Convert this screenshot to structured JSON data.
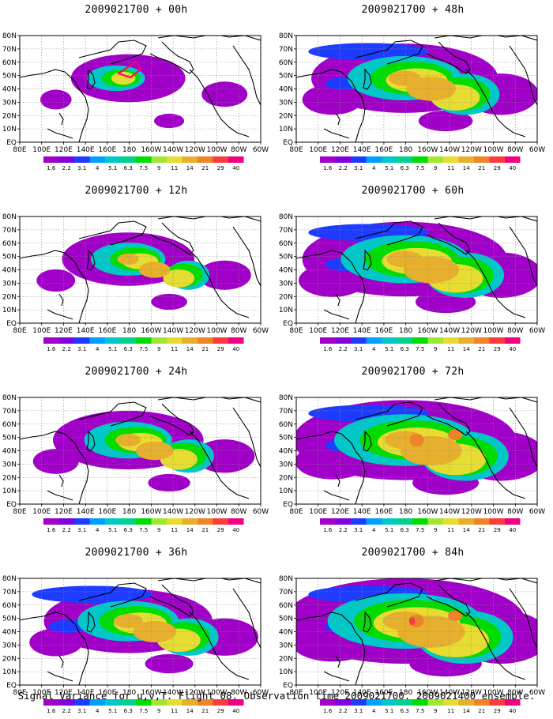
{
  "footer": "Signal Variance for u,v,T. Flight 08. Observation time 2009021700. 2009021400 ensemble.",
  "lon_ticks": [
    "80E",
    "100E",
    "120E",
    "140E",
    "160E",
    "180",
    "160W",
    "140W",
    "120W",
    "100W",
    "80W",
    "60W"
  ],
  "lat_ticks": [
    "80N",
    "70N",
    "60N",
    "50N",
    "40N",
    "30N",
    "20N",
    "10N",
    "EQ"
  ],
  "colorbar": {
    "levels": [
      "1.6",
      "2.2",
      "3.1",
      "4",
      "5.1",
      "6.3",
      "7.5",
      "9",
      "11",
      "14",
      "21",
      "29",
      "40"
    ],
    "colors": [
      "#a000c8",
      "#8200dc",
      "#1e3cff",
      "#00a0ff",
      "#00c8c8",
      "#00d28c",
      "#00dc00",
      "#a0e632",
      "#e6dc32",
      "#e6af2d",
      "#f08228",
      "#fa3c3c",
      "#f00082"
    ]
  },
  "panels": [
    {
      "title": "2009021700 + 00h",
      "intensity": 1
    },
    {
      "title": "2009021700 + 12h",
      "intensity": 2
    },
    {
      "title": "2009021700 + 24h",
      "intensity": 3
    },
    {
      "title": "2009021700 + 36h",
      "intensity": 4
    },
    {
      "title": "2009021700 + 48h",
      "intensity": 5
    },
    {
      "title": "2009021700 + 60h",
      "intensity": 6
    },
    {
      "title": "2009021700 + 72h",
      "intensity": 7
    },
    {
      "title": "2009021700 + 84h",
      "intensity": 8
    }
  ]
}
